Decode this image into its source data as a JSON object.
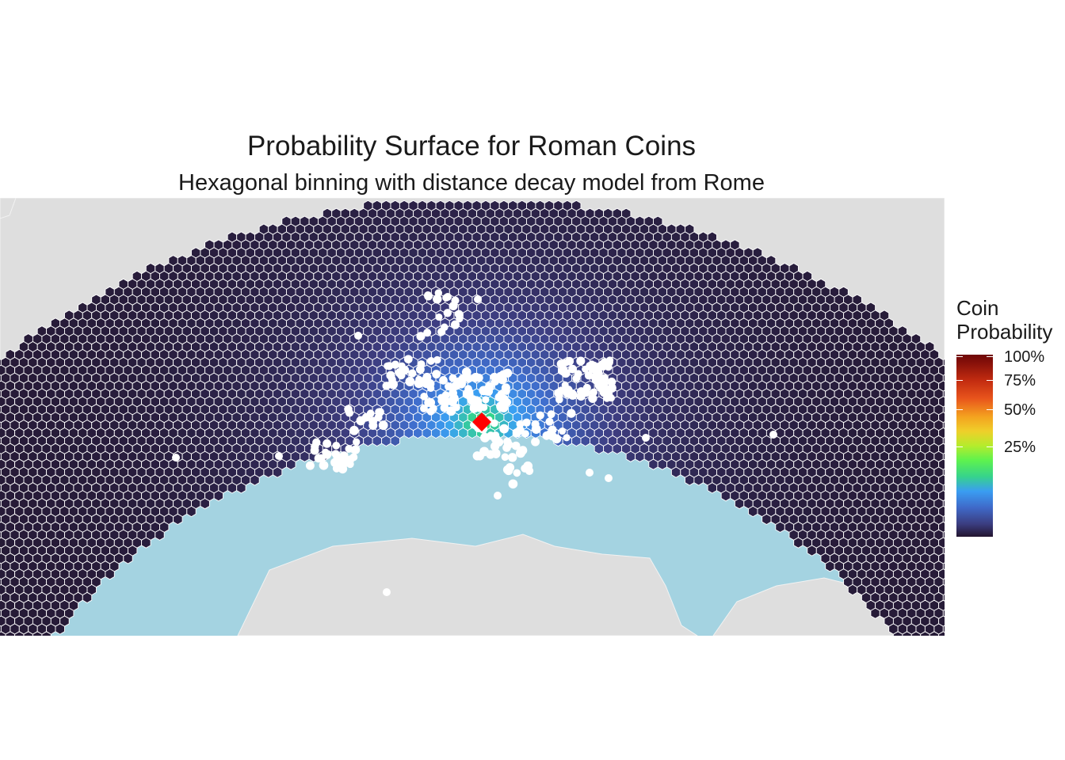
{
  "title": "Probability Surface for Roman Coins",
  "subtitle": "Hexagonal binning with distance decay model from Rome",
  "legend": {
    "title_line1": "Coin",
    "title_line2": "Probability",
    "ticks": [
      {
        "label": "100%",
        "value": 1.0
      },
      {
        "label": "75%",
        "value": 0.75
      },
      {
        "label": "50%",
        "value": 0.5
      },
      {
        "label": "25%",
        "value": 0.25
      }
    ]
  },
  "colors": {
    "sea": "#a4d3e1",
    "land": "#dedede",
    "hex_stroke": "#ffffff",
    "find_points": "#ffffff",
    "rome_marker": "#ff0000"
  },
  "map": {
    "marker": "rome-diamond",
    "features": [
      "hexagonal-probability-surface",
      "coin-find-points",
      "coastline",
      "rome-marker"
    ]
  }
}
